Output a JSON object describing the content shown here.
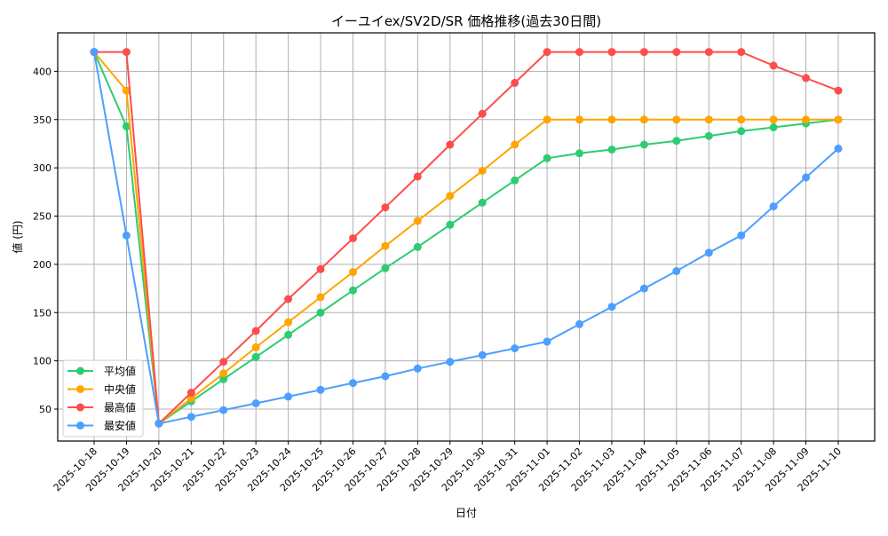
{
  "chart_data": {
    "type": "line",
    "title": "イーユイex/SV2D/SR 価格推移(過去30日間)",
    "xlabel": "日付",
    "ylabel": "値 (円)",
    "ylim": [
      20,
      440
    ],
    "yticks": [
      50,
      100,
      150,
      200,
      250,
      300,
      350,
      400
    ],
    "grid": true,
    "legend_position": "lower left",
    "x": [
      "2025-10-18",
      "2025-10-19",
      "2025-10-20",
      "2025-10-21",
      "2025-10-22",
      "2025-10-23",
      "2025-10-24",
      "2025-10-25",
      "2025-10-26",
      "2025-10-27",
      "2025-10-28",
      "2025-10-29",
      "2025-10-30",
      "2025-10-31",
      "2025-11-01",
      "2025-11-02",
      "2025-11-03",
      "2025-11-04",
      "2025-11-05",
      "2025-11-06",
      "2025-11-07",
      "2025-11-08",
      "2025-11-09",
      "2025-11-10"
    ],
    "series": [
      {
        "name": "平均値",
        "color": "#2ecc71",
        "values": [
          420,
          343,
          35,
          58,
          81,
          104,
          127,
          150,
          173,
          196,
          218,
          241,
          264,
          287,
          310,
          315,
          319,
          324,
          328,
          333,
          338,
          342,
          346,
          350
        ]
      },
      {
        "name": "中央値",
        "color": "#ffa500",
        "values": [
          420,
          380,
          35,
          61,
          87,
          114,
          140,
          166,
          192,
          219,
          245,
          271,
          297,
          324,
          350,
          350,
          350,
          350,
          350,
          350,
          350,
          350,
          350,
          350
        ]
      },
      {
        "name": "最高値",
        "color": "#ff4d4d",
        "values": [
          420,
          420,
          35,
          67,
          99,
          131,
          164,
          195,
          227,
          259,
          291,
          324,
          356,
          388,
          420,
          420,
          420,
          420,
          420,
          420,
          420,
          406,
          393,
          380
        ]
      },
      {
        "name": "最安値",
        "color": "#4d9fff",
        "values": [
          420,
          230,
          35,
          42,
          49,
          56,
          63,
          70,
          77,
          84,
          92,
          99,
          106,
          113,
          120,
          138,
          156,
          175,
          193,
          212,
          230,
          260,
          290,
          320
        ]
      }
    ]
  }
}
